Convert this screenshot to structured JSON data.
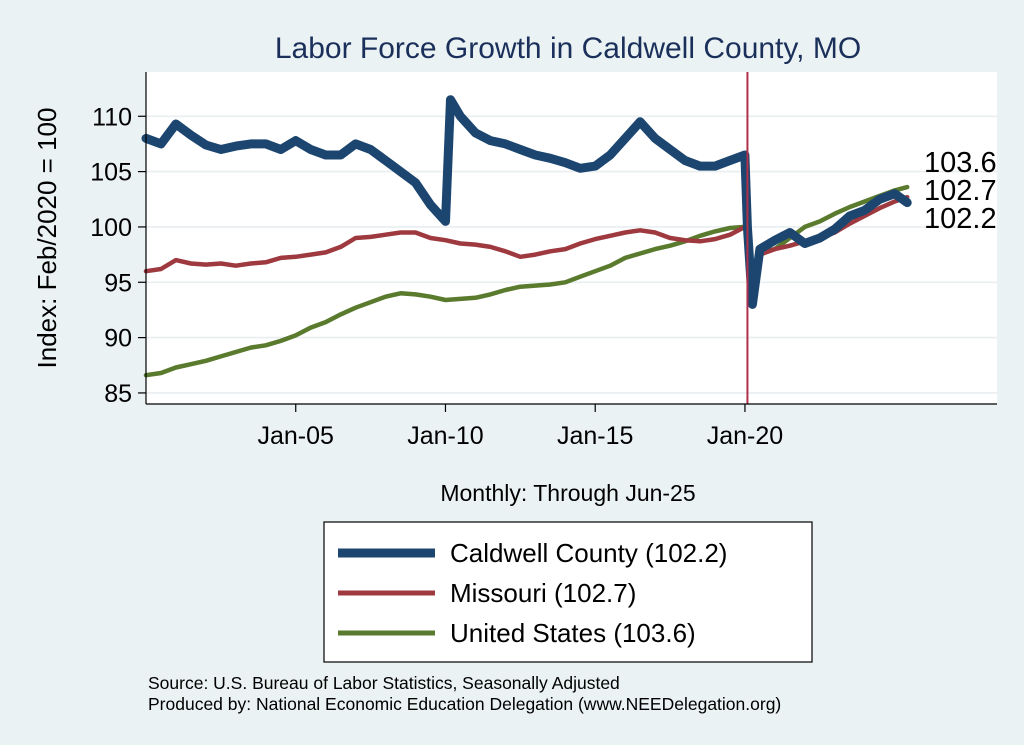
{
  "chart_data": {
    "type": "line",
    "title": "Labor Force Growth in Caldwell  County, MO",
    "xlabel": "Monthly: Through Jun-25",
    "ylabel": "Index: Feb/2020 = 100",
    "x_ticks": [
      "Jan-05",
      "Jan-10",
      "Jan-15",
      "Jan-20"
    ],
    "y_ticks": [
      85,
      90,
      95,
      100,
      105,
      110
    ],
    "ylim": [
      84,
      114
    ],
    "xlim": [
      "Jan-2000",
      "Jun-2028"
    ],
    "reference_line": {
      "x": "Feb-2020",
      "color": "#b0304a"
    },
    "grid": true,
    "legend_position": "bottom",
    "end_labels": [
      "103.6",
      "102.7",
      "102.2"
    ],
    "series": [
      {
        "name": "Caldwell  County (102.2)",
        "color": "#1c4670",
        "points": [
          [
            "Jan-2000",
            108.0
          ],
          [
            "Jul-2000",
            107.5
          ],
          [
            "Jan-2001",
            109.3
          ],
          [
            "Jul-2001",
            108.3
          ],
          [
            "Jan-2002",
            107.4
          ],
          [
            "Jul-2002",
            107.0
          ],
          [
            "Jan-2003",
            107.3
          ],
          [
            "Jul-2003",
            107.5
          ],
          [
            "Jan-2004",
            107.5
          ],
          [
            "Jul-2004",
            107.0
          ],
          [
            "Jan-2005",
            107.8
          ],
          [
            "Jul-2005",
            107.0
          ],
          [
            "Jan-2006",
            106.5
          ],
          [
            "Jul-2006",
            106.5
          ],
          [
            "Jan-2007",
            107.5
          ],
          [
            "Jul-2007",
            107.0
          ],
          [
            "Jan-2008",
            106.0
          ],
          [
            "Jul-2008",
            105.0
          ],
          [
            "Jan-2009",
            104.0
          ],
          [
            "Jul-2009",
            102.0
          ],
          [
            "Jan-2010",
            100.5
          ],
          [
            "Mar-2010",
            111.5
          ],
          [
            "Jul-2010",
            110.0
          ],
          [
            "Jan-2011",
            108.5
          ],
          [
            "Jul-2011",
            107.8
          ],
          [
            "Jan-2012",
            107.5
          ],
          [
            "Jul-2012",
            107.0
          ],
          [
            "Jan-2013",
            106.5
          ],
          [
            "Jul-2013",
            106.2
          ],
          [
            "Jan-2014",
            105.8
          ],
          [
            "Jul-2014",
            105.3
          ],
          [
            "Jan-2015",
            105.5
          ],
          [
            "Jul-2015",
            106.5
          ],
          [
            "Jan-2016",
            108.0
          ],
          [
            "Jul-2016",
            109.5
          ],
          [
            "Jan-2017",
            108.0
          ],
          [
            "Jul-2017",
            107.0
          ],
          [
            "Jan-2018",
            106.0
          ],
          [
            "Jul-2018",
            105.5
          ],
          [
            "Jan-2019",
            105.5
          ],
          [
            "Jul-2019",
            106.0
          ],
          [
            "Jan-2020",
            106.5
          ],
          [
            "Feb-2020",
            100.0
          ],
          [
            "Apr-2020",
            93.0
          ],
          [
            "Jul-2020",
            98.0
          ],
          [
            "Jan-2021",
            98.8
          ],
          [
            "Jul-2021",
            99.5
          ],
          [
            "Jan-2022",
            98.5
          ],
          [
            "Jul-2022",
            99.0
          ],
          [
            "Jan-2023",
            99.8
          ],
          [
            "Jul-2023",
            101.0
          ],
          [
            "Jan-2024",
            101.5
          ],
          [
            "Jul-2024",
            102.5
          ],
          [
            "Jan-2025",
            103.0
          ],
          [
            "Jun-2025",
            102.2
          ]
        ]
      },
      {
        "name": "Missouri (102.7)",
        "color": "#9e3a3f",
        "points": [
          [
            "Jan-2000",
            96.0
          ],
          [
            "Jul-2000",
            96.2
          ],
          [
            "Jan-2001",
            97.0
          ],
          [
            "Jul-2001",
            96.7
          ],
          [
            "Jan-2002",
            96.6
          ],
          [
            "Jul-2002",
            96.7
          ],
          [
            "Jan-2003",
            96.5
          ],
          [
            "Jul-2003",
            96.7
          ],
          [
            "Jan-2004",
            96.8
          ],
          [
            "Jul-2004",
            97.2
          ],
          [
            "Jan-2005",
            97.3
          ],
          [
            "Jul-2005",
            97.5
          ],
          [
            "Jan-2006",
            97.7
          ],
          [
            "Jul-2006",
            98.2
          ],
          [
            "Jan-2007",
            99.0
          ],
          [
            "Jul-2007",
            99.1
          ],
          [
            "Jan-2008",
            99.3
          ],
          [
            "Jul-2008",
            99.5
          ],
          [
            "Jan-2009",
            99.5
          ],
          [
            "Jul-2009",
            99.0
          ],
          [
            "Jan-2010",
            98.8
          ],
          [
            "Jul-2010",
            98.5
          ],
          [
            "Jan-2011",
            98.4
          ],
          [
            "Jul-2011",
            98.2
          ],
          [
            "Jan-2012",
            97.8
          ],
          [
            "Jul-2012",
            97.3
          ],
          [
            "Jan-2013",
            97.5
          ],
          [
            "Jul-2013",
            97.8
          ],
          [
            "Jan-2014",
            98.0
          ],
          [
            "Jul-2014",
            98.5
          ],
          [
            "Jan-2015",
            98.9
          ],
          [
            "Jul-2015",
            99.2
          ],
          [
            "Jan-2016",
            99.5
          ],
          [
            "Jul-2016",
            99.7
          ],
          [
            "Jan-2017",
            99.5
          ],
          [
            "Jul-2017",
            99.0
          ],
          [
            "Jan-2018",
            98.8
          ],
          [
            "Jul-2018",
            98.7
          ],
          [
            "Jan-2019",
            98.9
          ],
          [
            "Jul-2019",
            99.3
          ],
          [
            "Jan-2020",
            100.0
          ],
          [
            "Feb-2020",
            100.0
          ],
          [
            "Apr-2020",
            95.5
          ],
          [
            "Jul-2020",
            97.5
          ],
          [
            "Jan-2021",
            98.0
          ],
          [
            "Jul-2021",
            98.3
          ],
          [
            "Jan-2022",
            98.7
          ],
          [
            "Jul-2022",
            99.0
          ],
          [
            "Jan-2023",
            99.5
          ],
          [
            "Jul-2023",
            100.3
          ],
          [
            "Jan-2024",
            101.0
          ],
          [
            "Jul-2024",
            101.7
          ],
          [
            "Jan-2025",
            102.3
          ],
          [
            "Jun-2025",
            102.7
          ]
        ]
      },
      {
        "name": "United States (103.6)",
        "color": "#5a7a2e",
        "points": [
          [
            "Jan-2000",
            86.6
          ],
          [
            "Jul-2000",
            86.8
          ],
          [
            "Jan-2001",
            87.3
          ],
          [
            "Jul-2001",
            87.6
          ],
          [
            "Jan-2002",
            87.9
          ],
          [
            "Jul-2002",
            88.3
          ],
          [
            "Jan-2003",
            88.7
          ],
          [
            "Jul-2003",
            89.1
          ],
          [
            "Jan-2004",
            89.3
          ],
          [
            "Jul-2004",
            89.7
          ],
          [
            "Jan-2005",
            90.2
          ],
          [
            "Jul-2005",
            90.9
          ],
          [
            "Jan-2006",
            91.4
          ],
          [
            "Jul-2006",
            92.1
          ],
          [
            "Jan-2007",
            92.7
          ],
          [
            "Jul-2007",
            93.2
          ],
          [
            "Jan-2008",
            93.7
          ],
          [
            "Jul-2008",
            94.0
          ],
          [
            "Jan-2009",
            93.9
          ],
          [
            "Jul-2009",
            93.7
          ],
          [
            "Jan-2010",
            93.4
          ],
          [
            "Jul-2010",
            93.5
          ],
          [
            "Jan-2011",
            93.6
          ],
          [
            "Jul-2011",
            93.9
          ],
          [
            "Jan-2012",
            94.3
          ],
          [
            "Jul-2012",
            94.6
          ],
          [
            "Jan-2013",
            94.7
          ],
          [
            "Jul-2013",
            94.8
          ],
          [
            "Jan-2014",
            95.0
          ],
          [
            "Jul-2014",
            95.5
          ],
          [
            "Jan-2015",
            96.0
          ],
          [
            "Jul-2015",
            96.5
          ],
          [
            "Jan-2016",
            97.2
          ],
          [
            "Jul-2016",
            97.6
          ],
          [
            "Jan-2017",
            98.0
          ],
          [
            "Jul-2017",
            98.3
          ],
          [
            "Jan-2018",
            98.7
          ],
          [
            "Jul-2018",
            99.2
          ],
          [
            "Jan-2019",
            99.6
          ],
          [
            "Jul-2019",
            99.9
          ],
          [
            "Jan-2020",
            100.0
          ],
          [
            "Feb-2020",
            100.0
          ],
          [
            "Apr-2020",
            95.3
          ],
          [
            "Jul-2020",
            97.7
          ],
          [
            "Jan-2021",
            98.0
          ],
          [
            "Jul-2021",
            99.0
          ],
          [
            "Jan-2022",
            100.0
          ],
          [
            "Jul-2022",
            100.5
          ],
          [
            "Jan-2023",
            101.2
          ],
          [
            "Jul-2023",
            101.8
          ],
          [
            "Jan-2024",
            102.3
          ],
          [
            "Jul-2024",
            102.8
          ],
          [
            "Jan-2025",
            103.3
          ],
          [
            "Jun-2025",
            103.6
          ]
        ]
      }
    ]
  },
  "source": {
    "line1": "Source: U.S. Bureau of Labor Statistics, Seasonally Adjusted",
    "line2": "Produced by: National Economic Education Delegation (www.NEEDelegation.org)"
  }
}
